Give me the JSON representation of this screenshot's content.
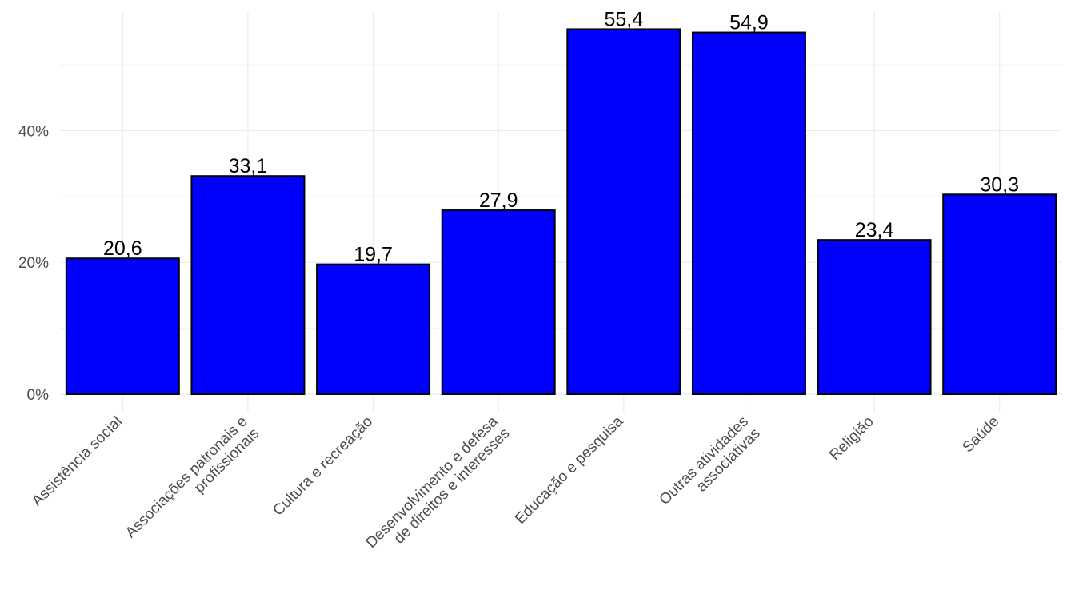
{
  "chart_data": {
    "type": "bar",
    "title": "",
    "xlabel": "",
    "ylabel": "",
    "categories": [
      [
        "Assistência social"
      ],
      [
        "Associações patronais e",
        "profissionais"
      ],
      [
        "Cultura e recreação"
      ],
      [
        "Desenvolvimento e defesa",
        "de direitos e interesses"
      ],
      [
        "Educação e pesquisa"
      ],
      [
        "Outras atividades",
        "associativas"
      ],
      [
        "Religião"
      ],
      [
        "Saúde"
      ]
    ],
    "values": [
      20.6,
      33.1,
      19.7,
      27.9,
      55.4,
      54.9,
      23.4,
      30.3
    ],
    "data_labels": [
      "20,6",
      "33,1",
      "19,7",
      "27,9",
      "55,4",
      "54,9",
      "23,4",
      "30,3"
    ],
    "yticks": [
      0,
      20,
      40
    ],
    "ytick_labels": [
      "0%",
      "20%",
      "40%"
    ],
    "ylim": [
      0,
      58
    ],
    "grid": true,
    "bar_fill": "#0000ff",
    "bar_outline": "#000000"
  }
}
